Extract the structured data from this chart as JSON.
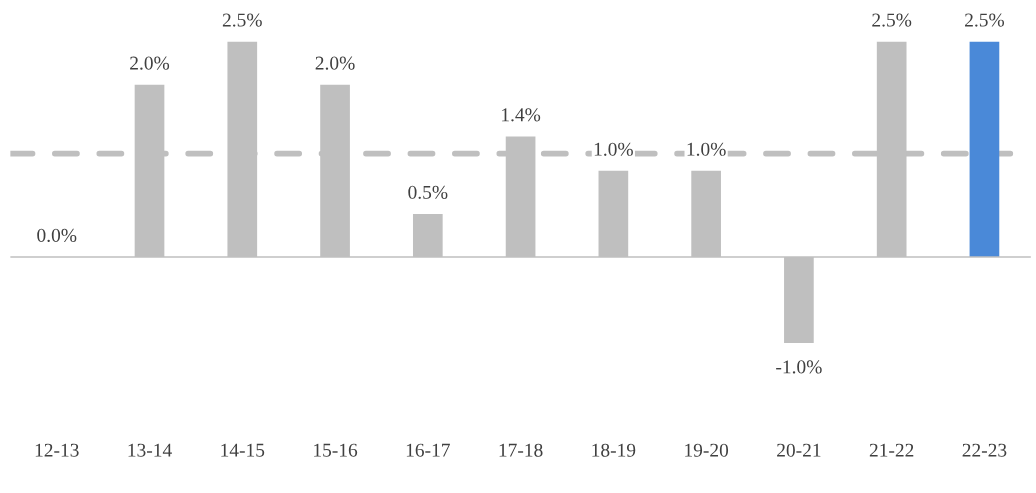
{
  "chart_data": {
    "type": "bar",
    "categories": [
      "12-13",
      "13-14",
      "14-15",
      "15-16",
      "16-17",
      "17-18",
      "18-19",
      "19-20",
      "20-21",
      "21-22",
      "22-23"
    ],
    "values": [
      0.0,
      2.0,
      2.5,
      2.0,
      0.5,
      1.4,
      1.0,
      1.0,
      -1.0,
      2.5,
      2.5
    ],
    "colors": [
      "#bfbfbf",
      "#bfbfbf",
      "#bfbfbf",
      "#bfbfbf",
      "#bfbfbf",
      "#bfbfbf",
      "#bfbfbf",
      "#bfbfbf",
      "#bfbfbf",
      "#bfbfbf",
      "#4a89d8"
    ],
    "value_labels": [
      "0.0%",
      "2.0%",
      "2.5%",
      "2.0%",
      "0.5%",
      "1.4%",
      "1.0%",
      "1.0%",
      "-1.0%",
      "2.5%",
      "2.5%"
    ],
    "ref_lines": [
      {
        "axis": "y",
        "value": 1.2,
        "color": "#bfbfbf",
        "line_style": "dashed"
      }
    ],
    "grid": false,
    "legend": false
  }
}
